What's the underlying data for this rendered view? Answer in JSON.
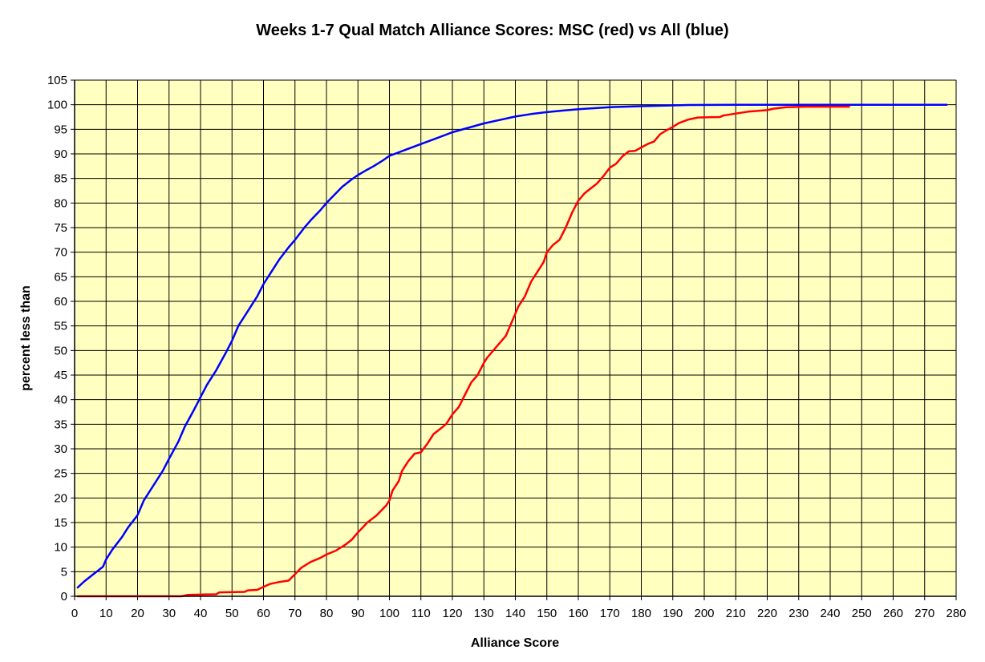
{
  "chart_data": {
    "type": "line",
    "title": "Weeks 1-7 Qual Match Alliance Scores:  MSC (red) vs All (blue)",
    "xlabel": "Alliance Score",
    "ylabel": "percent less than",
    "xlim": [
      0,
      280
    ],
    "ylim": [
      0,
      105
    ],
    "x_ticks": [
      0,
      10,
      20,
      30,
      40,
      50,
      60,
      70,
      80,
      90,
      100,
      110,
      120,
      130,
      140,
      150,
      160,
      170,
      180,
      190,
      200,
      210,
      220,
      230,
      240,
      250,
      260,
      270,
      280
    ],
    "y_ticks": [
      0,
      5,
      10,
      15,
      20,
      25,
      30,
      35,
      40,
      45,
      50,
      55,
      60,
      65,
      70,
      75,
      80,
      85,
      90,
      95,
      100,
      105
    ],
    "grid": true,
    "legend": "none",
    "plot_background": "#ffffc0",
    "series": [
      {
        "color": "#0000ff",
        "points": [
          [
            1,
            1.8
          ],
          [
            3,
            3
          ],
          [
            6,
            4.5
          ],
          [
            9,
            6
          ],
          [
            10,
            7.5
          ],
          [
            12,
            9.5
          ],
          [
            15,
            12
          ],
          [
            17,
            14
          ],
          [
            20,
            16.5
          ],
          [
            22,
            19.5
          ],
          [
            25,
            22.5
          ],
          [
            28,
            25.5
          ],
          [
            30,
            28
          ],
          [
            33,
            31.5
          ],
          [
            35,
            34.5
          ],
          [
            38,
            38
          ],
          [
            40,
            40.5
          ],
          [
            42,
            43
          ],
          [
            45,
            46
          ],
          [
            48,
            49.5
          ],
          [
            50,
            52
          ],
          [
            52,
            55
          ],
          [
            55,
            58
          ],
          [
            58,
            61
          ],
          [
            60,
            63.5
          ],
          [
            63,
            66.5
          ],
          [
            65,
            68.5
          ],
          [
            68,
            71
          ],
          [
            70,
            72.5
          ],
          [
            73,
            75
          ],
          [
            75,
            76.5
          ],
          [
            78,
            78.5
          ],
          [
            80,
            80
          ],
          [
            83,
            82
          ],
          [
            85,
            83.3
          ],
          [
            88,
            84.8
          ],
          [
            90,
            85.7
          ],
          [
            93,
            86.8
          ],
          [
            95,
            87.5
          ],
          [
            98,
            88.7
          ],
          [
            100,
            89.6
          ],
          [
            105,
            90.8
          ],
          [
            110,
            92
          ],
          [
            115,
            93.2
          ],
          [
            120,
            94.4
          ],
          [
            125,
            95.3
          ],
          [
            130,
            96.2
          ],
          [
            135,
            96.9
          ],
          [
            140,
            97.6
          ],
          [
            145,
            98.1
          ],
          [
            150,
            98.5
          ],
          [
            155,
            98.8
          ],
          [
            160,
            99.1
          ],
          [
            170,
            99.5
          ],
          [
            180,
            99.7
          ],
          [
            195,
            99.95
          ],
          [
            210,
            100
          ],
          [
            240,
            100
          ],
          [
            260,
            100
          ],
          [
            277,
            100
          ]
        ]
      },
      {
        "color": "#ff0000",
        "points": [
          [
            1,
            0
          ],
          [
            34,
            0
          ],
          [
            36,
            0.3
          ],
          [
            45,
            0.4
          ],
          [
            46,
            0.8
          ],
          [
            54,
            0.9
          ],
          [
            55,
            1.2
          ],
          [
            58,
            1.3
          ],
          [
            60,
            1.9
          ],
          [
            62,
            2.5
          ],
          [
            65,
            2.9
          ],
          [
            68,
            3.2
          ],
          [
            70,
            4.5
          ],
          [
            72,
            5.8
          ],
          [
            75,
            7
          ],
          [
            78,
            7.8
          ],
          [
            80,
            8.5
          ],
          [
            83,
            9.3
          ],
          [
            86,
            10.5
          ],
          [
            88,
            11.5
          ],
          [
            90,
            13
          ],
          [
            93,
            15
          ],
          [
            96,
            16.5
          ],
          [
            99,
            18.5
          ],
          [
            100,
            19.5
          ],
          [
            101,
            21.5
          ],
          [
            103,
            23.5
          ],
          [
            104,
            25.5
          ],
          [
            106,
            27.5
          ],
          [
            108,
            29
          ],
          [
            110,
            29.3
          ],
          [
            112,
            31
          ],
          [
            114,
            33
          ],
          [
            116,
            34
          ],
          [
            118,
            35
          ],
          [
            120,
            37
          ],
          [
            122,
            38.5
          ],
          [
            124,
            41
          ],
          [
            126,
            43.5
          ],
          [
            128,
            45
          ],
          [
            130,
            47.5
          ],
          [
            131,
            48.5
          ],
          [
            133,
            50
          ],
          [
            135,
            51.5
          ],
          [
            137,
            53
          ],
          [
            139,
            56
          ],
          [
            141,
            59
          ],
          [
            143,
            61
          ],
          [
            145,
            64
          ],
          [
            147,
            66
          ],
          [
            149,
            68
          ],
          [
            150,
            70
          ],
          [
            152,
            71.5
          ],
          [
            154,
            72.5
          ],
          [
            156,
            75
          ],
          [
            158,
            78
          ],
          [
            160,
            80.5
          ],
          [
            162,
            82
          ],
          [
            164,
            83
          ],
          [
            166,
            84
          ],
          [
            168,
            85.5
          ],
          [
            170,
            87.2
          ],
          [
            172,
            88
          ],
          [
            174,
            89.5
          ],
          [
            176,
            90.5
          ],
          [
            178,
            90.6
          ],
          [
            180,
            91.3
          ],
          [
            182,
            92
          ],
          [
            184,
            92.5
          ],
          [
            186,
            94
          ],
          [
            188,
            94.8
          ],
          [
            190,
            95.5
          ],
          [
            192,
            96.3
          ],
          [
            195,
            97
          ],
          [
            198,
            97.4
          ],
          [
            205,
            97.5
          ],
          [
            206,
            97.8
          ],
          [
            210,
            98.2
          ],
          [
            214,
            98.6
          ],
          [
            220,
            98.9
          ],
          [
            222,
            99.2
          ],
          [
            226,
            99.5
          ],
          [
            232,
            99.6
          ],
          [
            246,
            99.6
          ]
        ]
      }
    ]
  }
}
